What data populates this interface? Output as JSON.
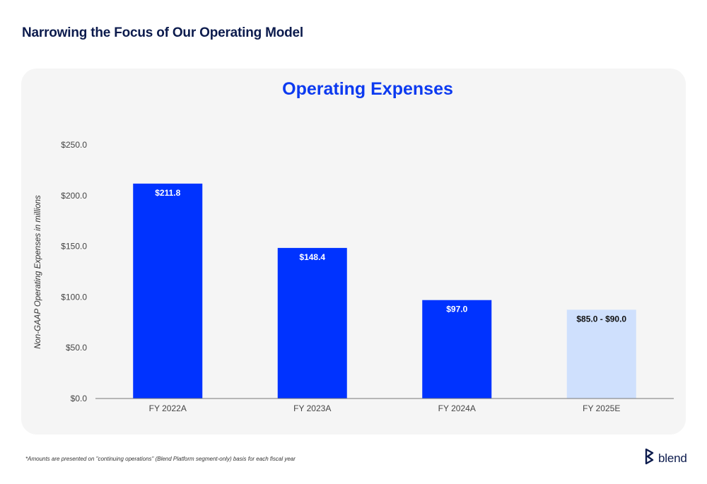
{
  "page": {
    "title": "Narrowing the Focus of Our Operating Model",
    "footnote": "*Amounts are presented on \"continuing operations\" (Blend Platform segment-only) basis for each fiscal year",
    "brand_name": "blend"
  },
  "colors": {
    "actual": "#0033ff",
    "estimate": "#cfe0fd",
    "title": "#0c3af0",
    "heading": "#0c1b4d"
  },
  "chart_data": {
    "type": "bar",
    "title": "Operating Expenses",
    "xlabel": "",
    "ylabel": "Non-GAAP Operating Expenses in millions",
    "ylim": [
      0,
      250
    ],
    "yticks": [
      0,
      50,
      100,
      150,
      200,
      250
    ],
    "ytick_labels": [
      "$0.0",
      "$50.0",
      "$100.0",
      "$150.0",
      "$200.0",
      "$250.0"
    ],
    "grid": false,
    "categories": [
      "FY 2022A",
      "FY 2023A",
      "FY 2024A",
      "FY 2025E"
    ],
    "values": [
      211.8,
      148.4,
      97.0,
      87.5
    ],
    "data_labels": [
      "$211.8",
      "$148.4",
      "$97.0",
      "$85.0 - $90.0"
    ],
    "estimate_range": [
      85.0,
      90.0
    ],
    "is_estimate": [
      false,
      false,
      false,
      true
    ]
  }
}
